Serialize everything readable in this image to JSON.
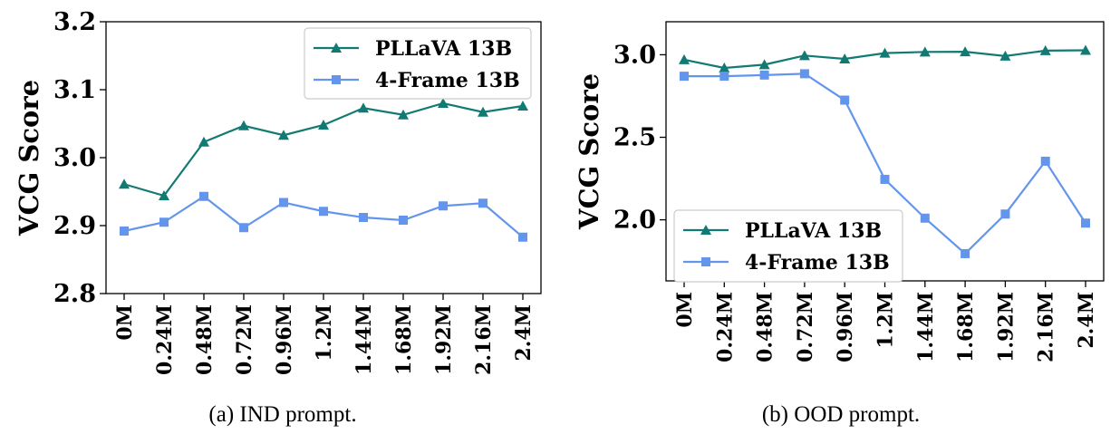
{
  "colors": {
    "pllava": "#117a73",
    "fourframe": "#6495ed"
  },
  "chart_data": [
    {
      "type": "line",
      "caption": "(a)  IND prompt.",
      "ylabel": "VCG Score",
      "categories": [
        "0M",
        "0.24M",
        "0.48M",
        "0.72M",
        "0.96M",
        "1.2M",
        "1.44M",
        "1.68M",
        "1.92M",
        "2.16M",
        "2.4M"
      ],
      "ylim": [
        2.8,
        3.2
      ],
      "yticks": [
        2.8,
        2.9,
        3.0,
        3.1,
        3.2
      ],
      "ytick_labels": [
        "2.8",
        "2.9",
        "3.0",
        "3.1",
        "3.2"
      ],
      "legend_position": "top-right",
      "grid": false,
      "series": [
        {
          "name": "PLLaVA 13B",
          "marker": "triangle",
          "color": "#117a73",
          "values": [
            2.961,
            2.944,
            3.023,
            3.047,
            3.033,
            3.048,
            3.073,
            3.063,
            3.08,
            3.067,
            3.076
          ]
        },
        {
          "name": "4-Frame 13B",
          "marker": "square",
          "color": "#6495ed",
          "values": [
            2.892,
            2.905,
            2.943,
            2.897,
            2.934,
            2.921,
            2.912,
            2.908,
            2.929,
            2.933,
            2.883
          ]
        }
      ]
    },
    {
      "type": "line",
      "caption": "(b)  OOD prompt.",
      "ylabel": "VCG Score",
      "categories": [
        "0M",
        "0.24M",
        "0.48M",
        "0.72M",
        "0.96M",
        "1.2M",
        "1.44M",
        "1.68M",
        "1.92M",
        "2.16M",
        "2.4M"
      ],
      "ylim": [
        1.63,
        3.2
      ],
      "yticks": [
        2.0,
        2.5,
        3.0
      ],
      "ytick_labels": [
        "2.0",
        "2.5",
        "3.0"
      ],
      "legend_position": "lower-left",
      "grid": false,
      "series": [
        {
          "name": "PLLaVA 13B",
          "marker": "triangle",
          "color": "#117a73",
          "values": [
            2.97,
            2.92,
            2.94,
            2.995,
            2.975,
            3.01,
            3.017,
            3.018,
            2.992,
            3.025,
            3.027
          ]
        },
        {
          "name": "4-Frame 13B",
          "marker": "square",
          "color": "#6495ed",
          "values": [
            2.87,
            2.87,
            2.877,
            2.885,
            2.725,
            2.245,
            2.01,
            1.795,
            2.035,
            2.355,
            1.98
          ]
        }
      ]
    }
  ]
}
